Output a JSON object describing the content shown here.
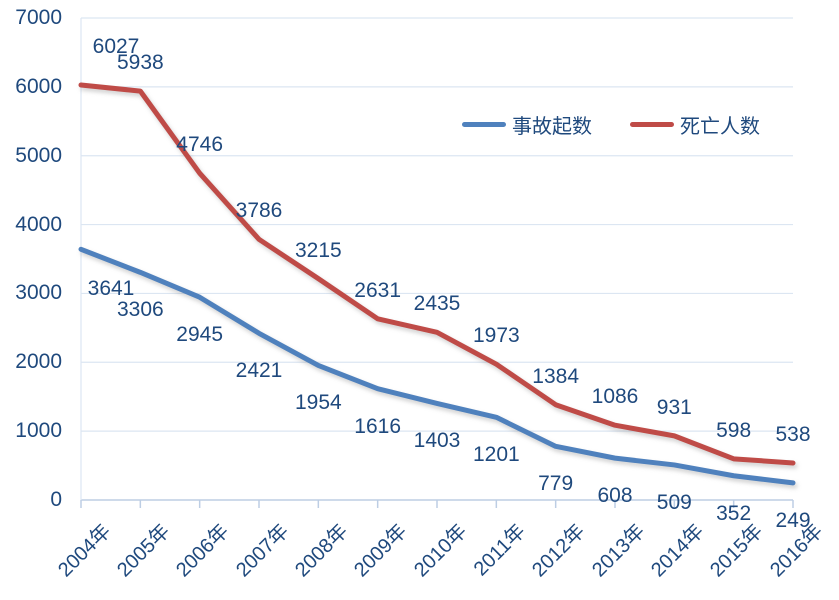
{
  "chart_data": {
    "type": "line",
    "title": "",
    "xlabel": "",
    "ylabel": "",
    "categories": [
      "2004年",
      "2005年",
      "2006年",
      "2007年",
      "2008年",
      "2009年",
      "2010年",
      "2011年",
      "2012年",
      "2013年",
      "2014年",
      "2015年",
      "2016年"
    ],
    "series": [
      {
        "name": "事故起数",
        "color": "#4F81BD",
        "values": [
          3641,
          3306,
          2945,
          2421,
          1954,
          1616,
          1403,
          1201,
          779,
          608,
          509,
          352,
          249
        ]
      },
      {
        "name": "死亡人数",
        "color": "#BF4B47",
        "values": [
          6027,
          5938,
          4746,
          3786,
          3215,
          2631,
          2435,
          1973,
          1384,
          1086,
          931,
          598,
          538
        ]
      }
    ],
    "ylim": [
      0,
      7000
    ],
    "y_ticks": [
      0,
      1000,
      2000,
      3000,
      4000,
      5000,
      6000,
      7000
    ],
    "grid": true,
    "data_labels_visible": true,
    "legend_position": "inside-top-right"
  },
  "colors": {
    "background": "#FFFFFF",
    "text": "#1F497D",
    "gridline": "#DCE6F2",
    "axis": "#BDCEE4"
  }
}
